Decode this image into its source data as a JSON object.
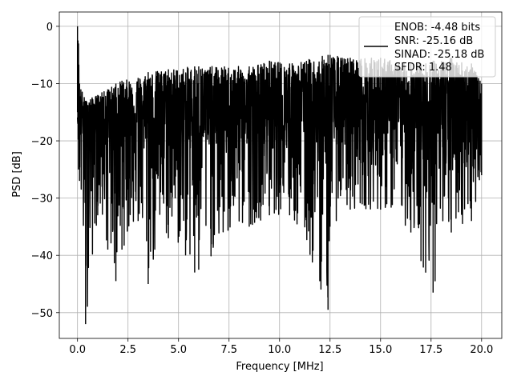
{
  "chart_data": {
    "type": "line",
    "title": "",
    "xlabel": "Frequency [MHz]",
    "ylabel": "PSD [dB]",
    "xlim": [
      -0.9,
      21.0
    ],
    "ylim": [
      -54.5,
      2.5
    ],
    "xticks": [
      0.0,
      2.5,
      5.0,
      7.5,
      10.0,
      12.5,
      15.0,
      17.5,
      20.0
    ],
    "xtick_labels": [
      "0.0",
      "2.5",
      "5.0",
      "7.5",
      "10.0",
      "12.5",
      "15.0",
      "17.5",
      "20.0"
    ],
    "yticks": [
      0,
      -10,
      -20,
      -30,
      -40,
      -50
    ],
    "ytick_labels": [
      "0",
      "−10",
      "−20",
      "−30",
      "−40",
      "−50"
    ],
    "grid": true,
    "legend_position": "upper-right",
    "line_color": "#000000",
    "series": [
      {
        "name": "ENOB: -4.48 bits\nSNR: -25.16 dB\nSINAD: -25.18 dB\nSFDR: 1.48",
        "description_points": {
          "x": [
            0.0,
            0.05,
            0.1,
            0.4,
            1.0,
            1.5,
            1.9,
            2.2,
            3.0,
            3.5,
            4.5,
            5.8,
            6.0,
            8.5,
            9.5,
            10.5,
            12.4,
            12.5,
            13.5,
            15.0,
            16.5,
            17.0,
            17.6,
            18.5,
            19.5,
            20.0
          ],
          "min_y": [
            -15,
            -25,
            -27,
            -52,
            -33,
            -39,
            -44.5,
            -39,
            -34,
            -45,
            -37,
            -43,
            -42.5,
            -35,
            -33,
            -33,
            -49.5,
            -35,
            -32,
            -32,
            -36,
            -41,
            -46.5,
            -36,
            -34,
            -26
          ],
          "max_y": [
            0,
            -3,
            -10,
            -13,
            -12,
            -11,
            -10,
            -9.5,
            -9,
            -8,
            -7.5,
            -7,
            -7,
            -7,
            -6,
            -6.5,
            -5,
            -5,
            -5.5,
            -5.5,
            -6.5,
            -6.5,
            -6,
            -5.5,
            -6.5,
            -10
          ]
        }
      }
    ],
    "legend_lines": [
      "ENOB: -4.48 bits",
      "SNR: -25.16 dB",
      "SINAD: -25.18 dB",
      "SFDR: 1.48"
    ]
  }
}
